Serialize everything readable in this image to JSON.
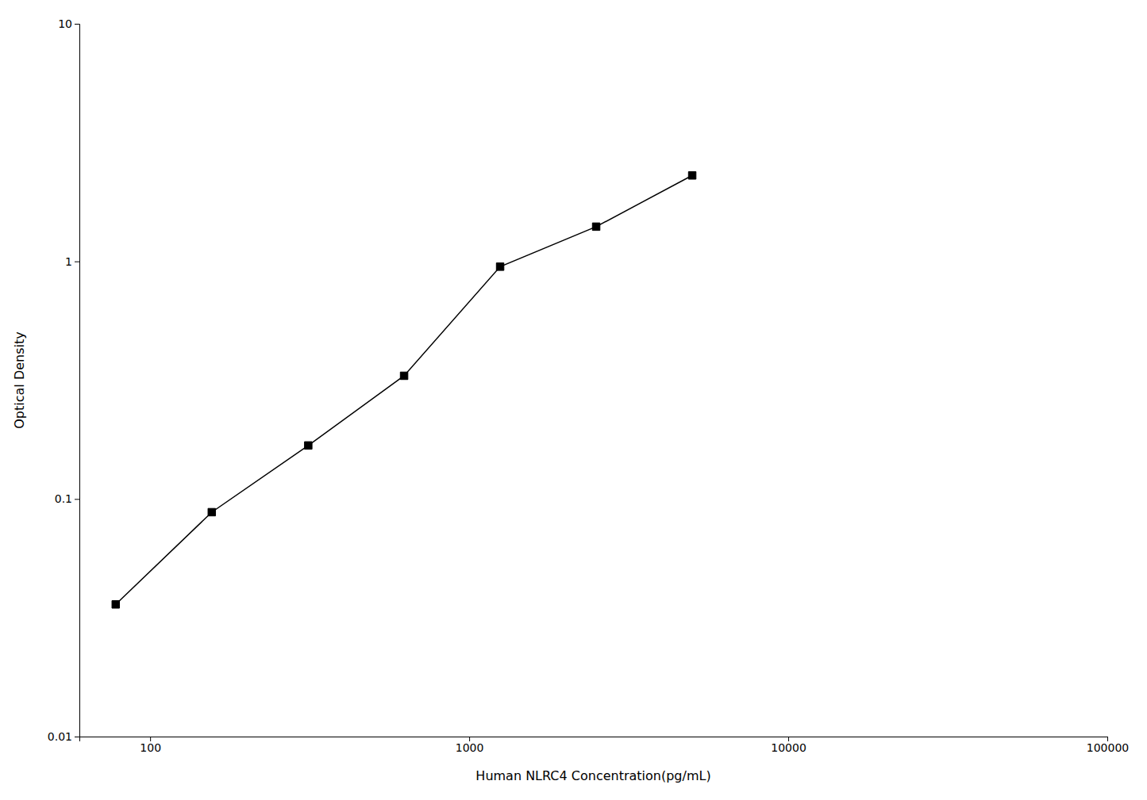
{
  "chart_data": {
    "type": "line",
    "x": [
      78,
      156,
      313,
      625,
      1250,
      2500,
      5000
    ],
    "values": [
      0.036,
      0.088,
      0.168,
      0.33,
      0.95,
      1.4,
      2.3
    ],
    "xlabel": "Human NLRC4 Concentration(pg/mL)",
    "ylabel": "Optical Density",
    "xlim": [
      60,
      100000
    ],
    "ylim": [
      0.01,
      10
    ],
    "xticks": [
      100,
      1000,
      10000,
      100000
    ],
    "yticks": [
      0.01,
      0.1,
      1,
      10
    ],
    "log": true,
    "grid": false,
    "color": "#000000",
    "marker": "square"
  }
}
